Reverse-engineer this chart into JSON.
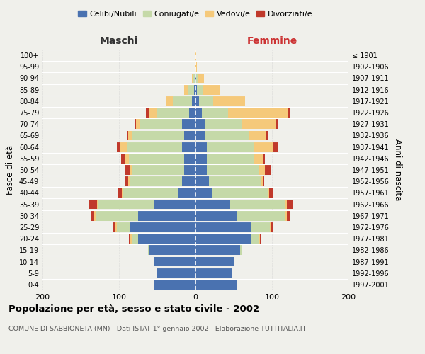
{
  "age_groups": [
    "0-4",
    "5-9",
    "10-14",
    "15-19",
    "20-24",
    "25-29",
    "30-34",
    "35-39",
    "40-44",
    "45-49",
    "50-54",
    "55-59",
    "60-64",
    "65-69",
    "70-74",
    "75-79",
    "80-84",
    "85-89",
    "90-94",
    "95-99",
    "100+"
  ],
  "birth_years": [
    "1997-2001",
    "1992-1996",
    "1987-1991",
    "1982-1986",
    "1977-1981",
    "1972-1976",
    "1967-1971",
    "1962-1966",
    "1957-1961",
    "1952-1956",
    "1947-1951",
    "1942-1946",
    "1937-1941",
    "1932-1936",
    "1927-1931",
    "1922-1926",
    "1917-1921",
    "1912-1916",
    "1907-1911",
    "1902-1906",
    "≤ 1901"
  ],
  "males": {
    "celibi": [
      55,
      50,
      55,
      60,
      75,
      85,
      75,
      55,
      22,
      18,
      15,
      15,
      18,
      15,
      18,
      8,
      5,
      2,
      1,
      1,
      1
    ],
    "coniugati": [
      0,
      0,
      0,
      2,
      8,
      18,
      55,
      72,
      72,
      68,
      68,
      72,
      72,
      68,
      55,
      42,
      25,
      8,
      2,
      0,
      0
    ],
    "vedovi": [
      0,
      0,
      0,
      0,
      2,
      2,
      2,
      2,
      2,
      2,
      2,
      5,
      8,
      5,
      5,
      10,
      8,
      5,
      2,
      0,
      0
    ],
    "divorziati": [
      0,
      0,
      0,
      0,
      2,
      2,
      5,
      10,
      5,
      5,
      8,
      5,
      5,
      2,
      2,
      5,
      0,
      0,
      0,
      0,
      0
    ]
  },
  "females": {
    "nubili": [
      55,
      48,
      50,
      58,
      72,
      72,
      55,
      45,
      22,
      18,
      15,
      15,
      15,
      12,
      12,
      8,
      5,
      2,
      1,
      0,
      0
    ],
    "coniugate": [
      0,
      0,
      0,
      2,
      10,
      25,
      62,
      72,
      72,
      68,
      68,
      62,
      62,
      58,
      48,
      35,
      18,
      8,
      2,
      0,
      0
    ],
    "vedove": [
      0,
      0,
      0,
      0,
      2,
      2,
      2,
      2,
      2,
      2,
      8,
      12,
      25,
      22,
      45,
      78,
      42,
      22,
      8,
      2,
      1
    ],
    "divorziate": [
      0,
      0,
      0,
      0,
      2,
      2,
      5,
      8,
      5,
      2,
      8,
      2,
      5,
      2,
      2,
      2,
      0,
      0,
      0,
      0,
      0
    ]
  },
  "colors": {
    "celibi_nubili": "#4a72b0",
    "coniugati": "#c5d9a8",
    "vedovi": "#f5c97a",
    "divorziati": "#c0392b"
  },
  "title": "Popolazione per età, sesso e stato civile - 2002",
  "subtitle": "COMUNE DI SABBIONETA (MN) - Dati ISTAT 1° gennaio 2002 - Elaborazione TUTTITALIA.IT",
  "ylabel_left": "Fasce di età",
  "ylabel_right": "Anni di nascita",
  "xlabel_left": "Maschi",
  "xlabel_right": "Femmine",
  "xlim": 200,
  "bg_color": "#f0f0eb",
  "grid_color": "#cccccc"
}
